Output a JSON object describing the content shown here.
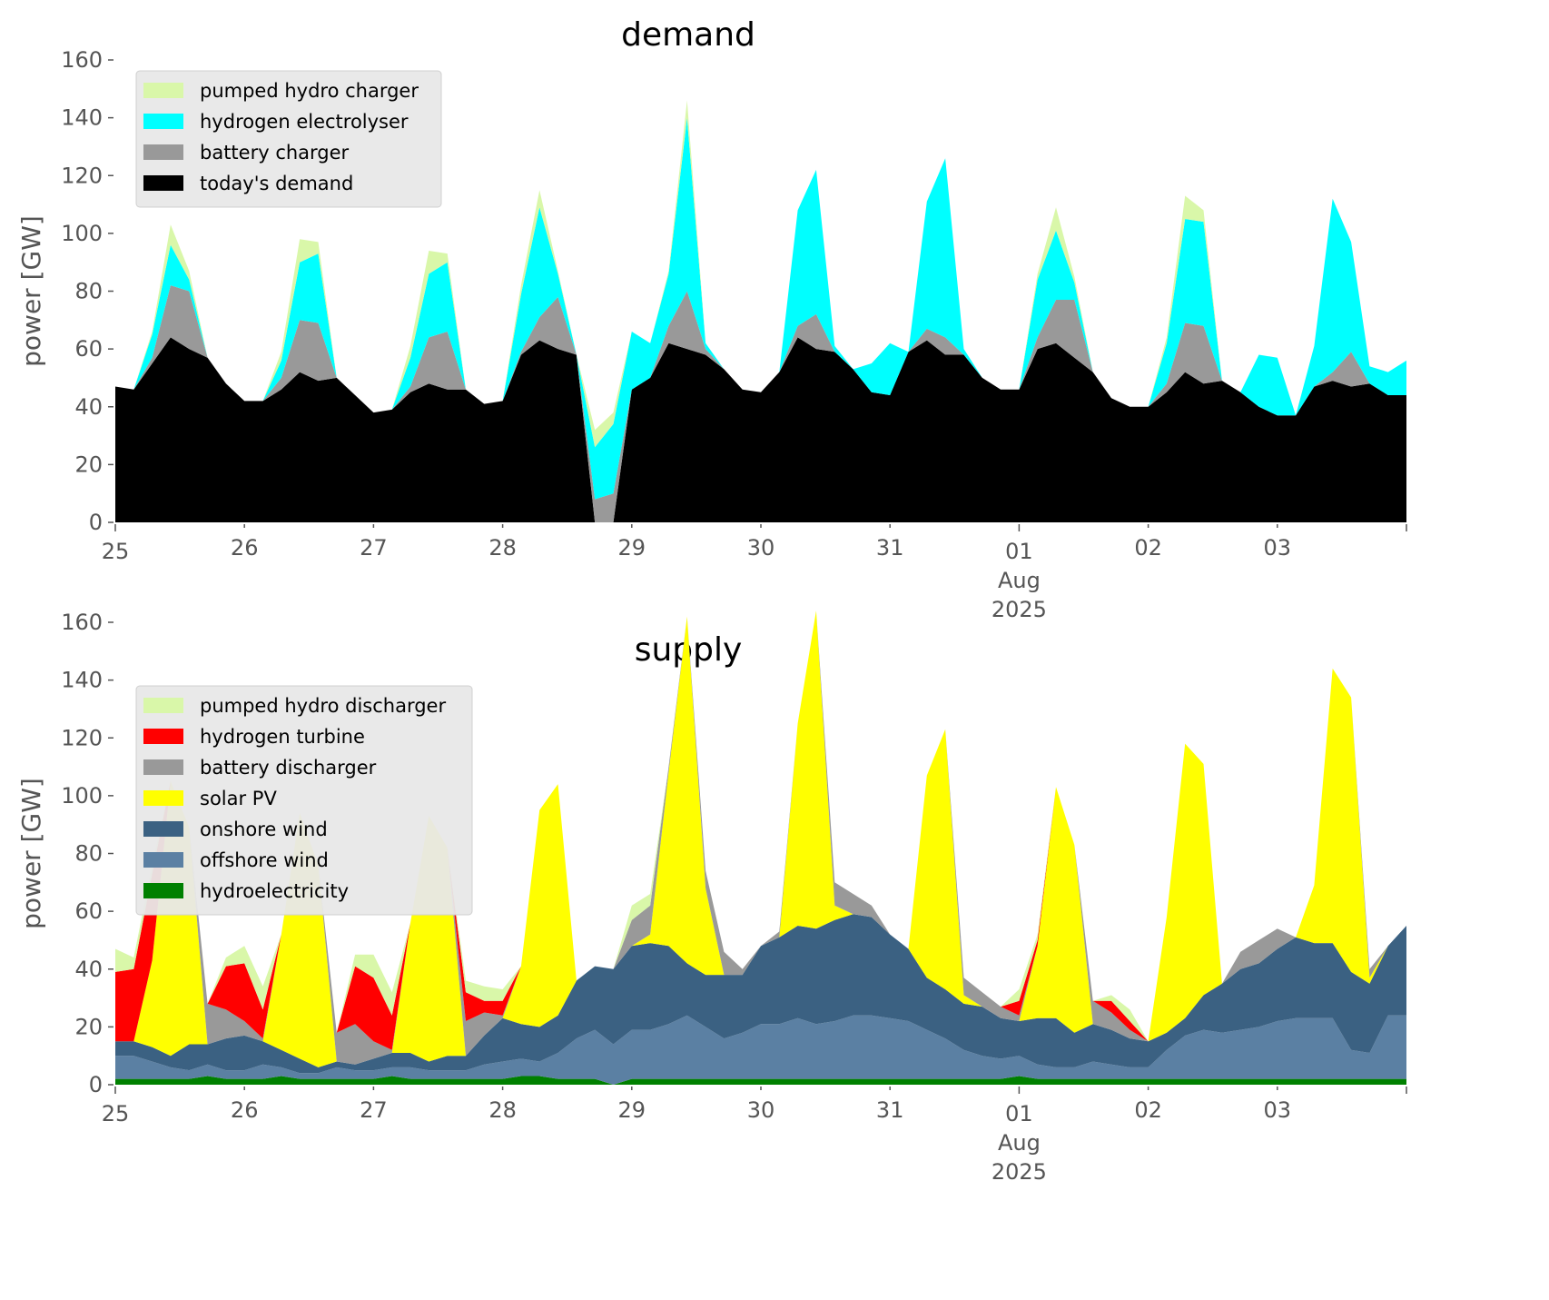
{
  "chart_data": [
    {
      "type": "area",
      "stacked": true,
      "title": "demand",
      "xlabel": "",
      "ylabel": "power [GW]",
      "ylim": [
        0,
        160
      ],
      "yticks": [
        0,
        20,
        40,
        60,
        80,
        100,
        120,
        140,
        160
      ],
      "xlim": [
        "2025-07-25T00:00",
        "2025-08-04T00:00"
      ],
      "xticks": [
        {
          "label": "25",
          "sub": []
        },
        {
          "label": "26",
          "sub": []
        },
        {
          "label": "27",
          "sub": []
        },
        {
          "label": "28",
          "sub": []
        },
        {
          "label": "29",
          "sub": []
        },
        {
          "label": "30",
          "sub": []
        },
        {
          "label": "31",
          "sub": []
        },
        {
          "label": "01",
          "sub": [
            "Aug",
            "2025"
          ]
        },
        {
          "label": "02",
          "sub": []
        },
        {
          "label": "03",
          "sub": []
        }
      ],
      "legend_position": "top-left",
      "x_step_hours": 3,
      "series": [
        {
          "name": "today's demand",
          "color": "#000000",
          "values": [
            47,
            46,
            55,
            64,
            60,
            57,
            48,
            42,
            42,
            46,
            52,
            49,
            50,
            44,
            38,
            39,
            45,
            48,
            46,
            46,
            41,
            42,
            58,
            63,
            60,
            58,
            0,
            0,
            46,
            50,
            62,
            60,
            58,
            53,
            46,
            45,
            52,
            64,
            60,
            59,
            53,
            45,
            44,
            59,
            63,
            58,
            58,
            50,
            46,
            46,
            60,
            62,
            57,
            52,
            43,
            40,
            40,
            45,
            52,
            48,
            49,
            45,
            40,
            37,
            37,
            47,
            49,
            47,
            48,
            44,
            44
          ]
        },
        {
          "name": "battery charger",
          "color": "#999999",
          "values": [
            0,
            0,
            2,
            18,
            20,
            0,
            0,
            0,
            0,
            4,
            18,
            20,
            0,
            0,
            0,
            0,
            2,
            16,
            20,
            0,
            0,
            0,
            1,
            8,
            18,
            0,
            8,
            10,
            0,
            0,
            6,
            20,
            2,
            0,
            0,
            0,
            0,
            4,
            12,
            0,
            0,
            0,
            0,
            0,
            4,
            6,
            0,
            0,
            0,
            0,
            4,
            15,
            20,
            0,
            0,
            0,
            0,
            3,
            17,
            20,
            0,
            0,
            0,
            0,
            0,
            0,
            3,
            12,
            0,
            0,
            0
          ]
        },
        {
          "name": "hydrogen electrolyser",
          "color": "#00ffff",
          "values": [
            0,
            0,
            8,
            14,
            4,
            0,
            0,
            0,
            0,
            6,
            20,
            24,
            0,
            0,
            0,
            0,
            10,
            22,
            24,
            0,
            0,
            0,
            20,
            38,
            8,
            0,
            18,
            24,
            20,
            12,
            18,
            60,
            2,
            0,
            0,
            0,
            0,
            40,
            50,
            2,
            0,
            10,
            18,
            0,
            44,
            62,
            2,
            0,
            0,
            0,
            20,
            24,
            6,
            0,
            0,
            0,
            0,
            14,
            36,
            36,
            0,
            0,
            18,
            20,
            0,
            14,
            60,
            38,
            6,
            8,
            12
          ]
        },
        {
          "name": "pumped hydro charger",
          "color": "#d9f7a9",
          "values": [
            0,
            0,
            1,
            7,
            3,
            0,
            0,
            0,
            0,
            3,
            8,
            4,
            0,
            0,
            0,
            0,
            4,
            8,
            3,
            0,
            0,
            0,
            3,
            6,
            1,
            0,
            6,
            4,
            0,
            0,
            1,
            6,
            0,
            0,
            0,
            0,
            0,
            0,
            0,
            0,
            0,
            0,
            0,
            0,
            0,
            0,
            0,
            0,
            0,
            0,
            2,
            8,
            2,
            0,
            0,
            0,
            0,
            2,
            8,
            4,
            0,
            0,
            0,
            0,
            0,
            0,
            0,
            0,
            0,
            0,
            0
          ]
        }
      ]
    },
    {
      "type": "area",
      "stacked": true,
      "title": "supply",
      "xlabel": "",
      "ylabel": "power [GW]",
      "ylim": [
        0,
        160
      ],
      "yticks": [
        0,
        20,
        40,
        60,
        80,
        100,
        120,
        140,
        160
      ],
      "xlim": [
        "2025-07-25T00:00",
        "2025-08-04T00:00"
      ],
      "xticks": [
        {
          "label": "25",
          "sub": []
        },
        {
          "label": "26",
          "sub": []
        },
        {
          "label": "27",
          "sub": []
        },
        {
          "label": "28",
          "sub": []
        },
        {
          "label": "29",
          "sub": []
        },
        {
          "label": "30",
          "sub": []
        },
        {
          "label": "31",
          "sub": []
        },
        {
          "label": "01",
          "sub": [
            "Aug",
            "2025"
          ]
        },
        {
          "label": "02",
          "sub": []
        },
        {
          "label": "03",
          "sub": []
        }
      ],
      "legend_position": "top-left",
      "x_step_hours": 3,
      "series": [
        {
          "name": "hydroelectricity",
          "color": "#008000",
          "values": [
            2,
            2,
            2,
            2,
            2,
            3,
            2,
            2,
            2,
            3,
            2,
            2,
            2,
            2,
            2,
            3,
            2,
            2,
            2,
            2,
            2,
            2,
            3,
            3,
            2,
            2,
            2,
            0,
            2,
            2,
            2,
            2,
            2,
            2,
            2,
            2,
            2,
            2,
            2,
            2,
            2,
            2,
            2,
            2,
            2,
            2,
            2,
            2,
            2,
            3,
            2,
            2,
            2,
            2,
            2,
            2,
            2,
            2,
            2,
            2,
            2,
            2,
            2,
            2,
            2,
            2,
            2,
            2,
            2,
            2,
            2
          ]
        },
        {
          "name": "offshore wind",
          "color": "#5b80a3",
          "values": [
            8,
            8,
            6,
            4,
            3,
            4,
            3,
            3,
            5,
            3,
            2,
            2,
            4,
            3,
            3,
            3,
            4,
            3,
            3,
            3,
            5,
            6,
            6,
            5,
            9,
            14,
            17,
            14,
            17,
            17,
            19,
            22,
            18,
            14,
            16,
            19,
            19,
            21,
            19,
            20,
            22,
            22,
            21,
            20,
            17,
            14,
            10,
            8,
            7,
            7,
            5,
            4,
            4,
            6,
            5,
            4,
            4,
            10,
            15,
            17,
            16,
            17,
            18,
            20,
            21,
            21,
            21,
            10,
            9,
            22,
            22
          ]
        },
        {
          "name": "onshore wind",
          "color": "#3b6182",
          "values": [
            5,
            5,
            5,
            4,
            9,
            7,
            11,
            12,
            8,
            6,
            5,
            2,
            2,
            2,
            4,
            5,
            5,
            3,
            5,
            5,
            10,
            15,
            12,
            12,
            13,
            20,
            22,
            26,
            29,
            30,
            27,
            18,
            18,
            22,
            20,
            27,
            30,
            32,
            33,
            35,
            35,
            34,
            29,
            25,
            18,
            17,
            16,
            17,
            14,
            12,
            16,
            17,
            12,
            13,
            12,
            10,
            9,
            6,
            6,
            12,
            17,
            21,
            22,
            25,
            28,
            26,
            26,
            27,
            24,
            24,
            31
          ]
        },
        {
          "name": "solar PV",
          "color": "#ffff00",
          "values": [
            0,
            0,
            30,
            95,
            75,
            0,
            0,
            0,
            0,
            40,
            85,
            70,
            0,
            0,
            0,
            0,
            45,
            85,
            72,
            0,
            0,
            0,
            20,
            75,
            80,
            0,
            0,
            0,
            0,
            3,
            60,
            120,
            30,
            0,
            0,
            0,
            0,
            70,
            110,
            5,
            0,
            0,
            0,
            0,
            70,
            90,
            3,
            0,
            0,
            0,
            25,
            80,
            65,
            0,
            0,
            0,
            0,
            40,
            95,
            80,
            0,
            0,
            0,
            0,
            0,
            20,
            95,
            95,
            2,
            0,
            0
          ]
        },
        {
          "name": "battery discharger",
          "color": "#999999",
          "values": [
            0,
            0,
            0,
            0,
            0,
            14,
            10,
            5,
            1,
            0,
            0,
            0,
            10,
            14,
            6,
            1,
            0,
            0,
            0,
            12,
            8,
            1,
            0,
            0,
            0,
            0,
            0,
            0,
            9,
            10,
            2,
            0,
            6,
            8,
            2,
            0,
            2,
            0,
            0,
            8,
            7,
            4,
            0,
            0,
            0,
            0,
            6,
            5,
            4,
            2,
            0,
            0,
            0,
            8,
            6,
            3,
            0,
            0,
            0,
            0,
            0,
            6,
            8,
            7,
            0,
            0,
            0,
            0,
            3,
            0,
            0
          ]
        },
        {
          "name": "hydrogen turbine",
          "color": "#ff0000",
          "values": [
            24,
            25,
            30,
            0,
            0,
            0,
            15,
            20,
            10,
            0,
            0,
            0,
            0,
            20,
            22,
            12,
            0,
            0,
            0,
            10,
            4,
            5,
            0,
            0,
            0,
            0,
            0,
            0,
            0,
            0,
            0,
            0,
            0,
            0,
            0,
            0,
            0,
            0,
            0,
            0,
            0,
            0,
            0,
            0,
            0,
            0,
            0,
            0,
            0,
            5,
            2,
            0,
            0,
            0,
            4,
            3,
            0,
            0,
            0,
            0,
            0,
            0,
            0,
            0,
            0,
            0,
            0,
            0,
            0,
            0,
            0
          ]
        },
        {
          "name": "pumped hydro discharger",
          "color": "#d9f7a9",
          "values": [
            8,
            4,
            3,
            0,
            0,
            0,
            3,
            6,
            8,
            0,
            0,
            0,
            0,
            4,
            8,
            8,
            0,
            0,
            0,
            4,
            5,
            4,
            0,
            0,
            0,
            0,
            0,
            0,
            5,
            4,
            0,
            0,
            0,
            0,
            0,
            0,
            0,
            0,
            0,
            0,
            0,
            0,
            0,
            0,
            0,
            0,
            0,
            0,
            0,
            4,
            2,
            0,
            0,
            0,
            2,
            4,
            0,
            0,
            0,
            0,
            0,
            0,
            0,
            0,
            0,
            0,
            0,
            0,
            0,
            0,
            0
          ]
        }
      ]
    }
  ]
}
